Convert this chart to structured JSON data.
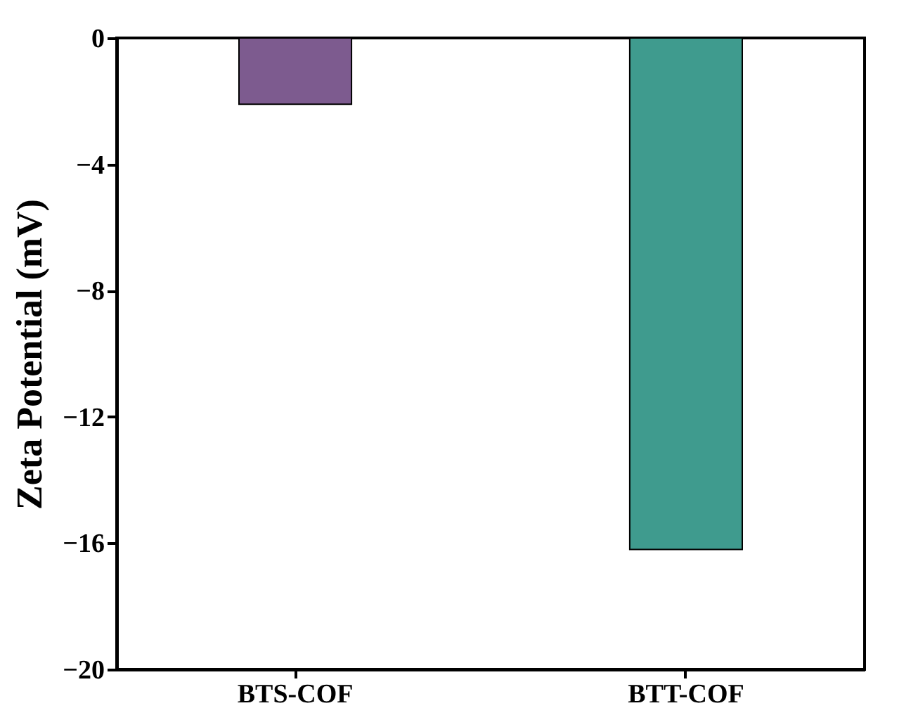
{
  "chart_data": {
    "type": "bar",
    "ylabel": "Zeta Potential (mV)",
    "categories": [
      "BTS-COF",
      "BTT-COF"
    ],
    "values": [
      -2.1,
      -16.2
    ],
    "colors": [
      "#7d5b8f",
      "#3f9b8e"
    ],
    "ylim": [
      -20,
      0
    ],
    "yticks": [
      -20,
      -16,
      -12,
      -8,
      -4,
      0
    ],
    "grid": false,
    "legend": false
  }
}
